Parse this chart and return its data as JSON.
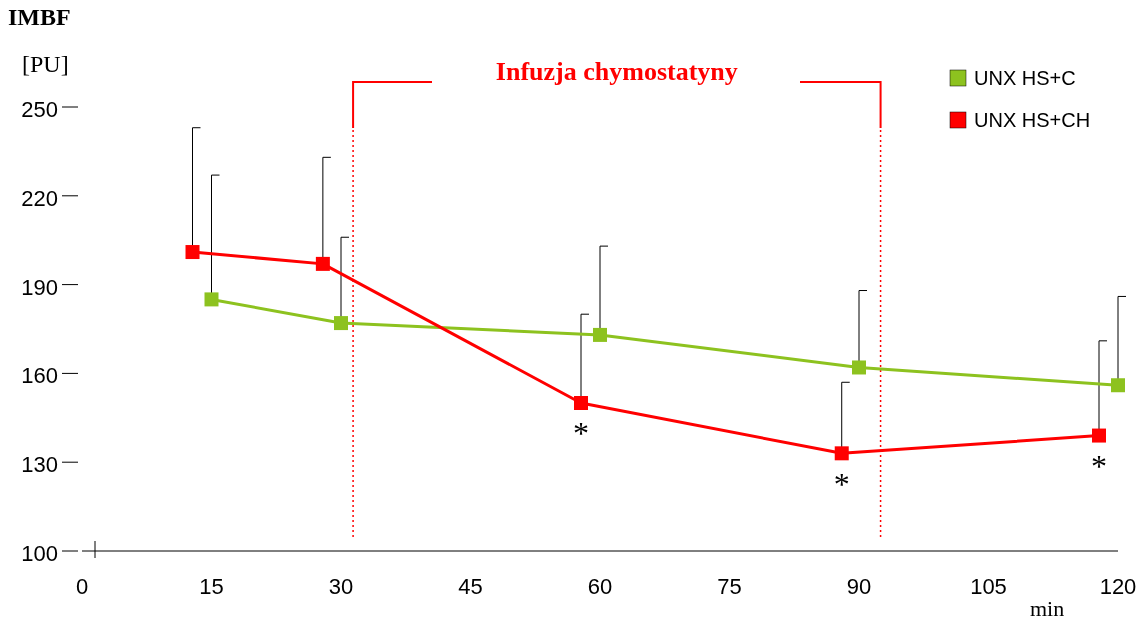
{
  "chart_data": {
    "type": "line",
    "title": "IMBF",
    "ylabel": "[PU]",
    "xlabel": "min",
    "xlim": [
      0,
      120
    ],
    "xticks": [
      0,
      15,
      30,
      45,
      60,
      75,
      90,
      105,
      120
    ],
    "ylim": [
      100,
      250
    ],
    "yticks": [
      100,
      130,
      160,
      190,
      220,
      250
    ],
    "grid": false,
    "legend": "top right",
    "marker": "square",
    "line_style": "solid",
    "series": [
      {
        "name": "UNX HS+C",
        "color": "#8dc21f",
        "x": [
          15,
          30,
          60,
          90,
          120
        ],
        "values": [
          185,
          177,
          173,
          162,
          156
        ],
        "errors": [
          [
            185,
            227
          ],
          [
            177,
            206
          ],
          [
            173,
            203
          ],
          [
            162,
            188
          ],
          [
            156,
            186
          ]
        ]
      },
      {
        "name": "UNX HS+CH",
        "color": "#ff0000",
        "x": [
          12.8,
          27.9,
          57.8,
          88,
          117.8
        ],
        "values": [
          201,
          197,
          150,
          133,
          139
        ],
        "errors": [
          [
            201,
            243
          ],
          [
            197,
            233
          ],
          [
            150,
            180
          ],
          [
            133,
            157
          ],
          [
            139,
            171
          ]
        ]
      }
    ],
    "ref_lines": [
      {
        "axis": "x",
        "value": 31.4,
        "color": "#ff0000",
        "line_style": "dotted"
      },
      {
        "axis": "x",
        "value": 92.5,
        "color": "#ff0000",
        "line_style": "dotted"
      }
    ],
    "annotations": [
      "Infuzja chymostatyny",
      {
        "text": "*",
        "x": 57.8,
        "y": 150
      },
      {
        "text": "*",
        "x": 88,
        "y": 133
      },
      {
        "text": "*",
        "x": 117.8,
        "y": 139
      }
    ]
  }
}
